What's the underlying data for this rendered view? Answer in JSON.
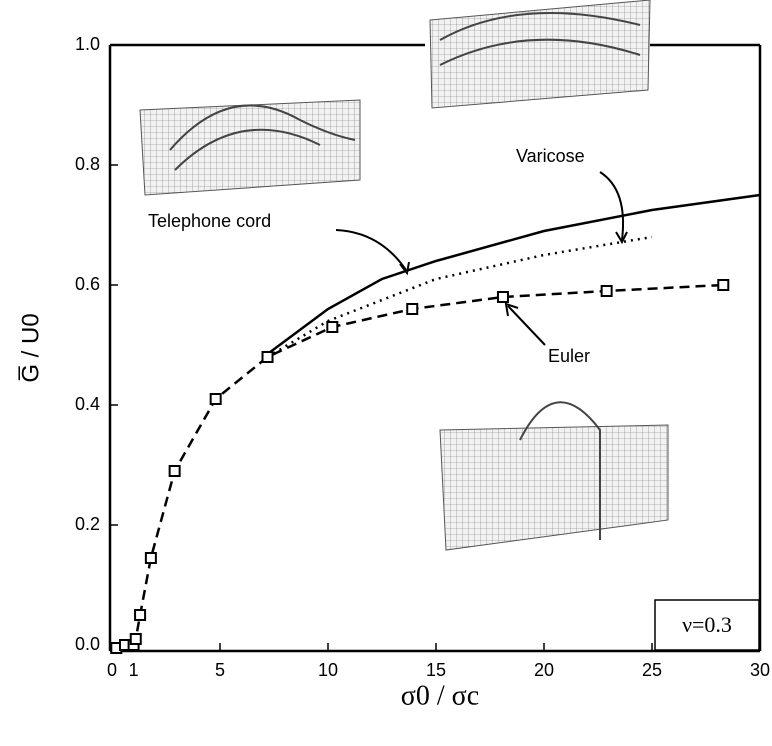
{
  "chart_data": {
    "type": "line",
    "xlabel": "σ0 / σc",
    "ylabel": "G̅ / U0",
    "xlim": [
      0,
      30
    ],
    "ylim": [
      -0.01,
      1.0
    ],
    "xticks": [
      0,
      1,
      5,
      10,
      15,
      20,
      25,
      30
    ],
    "yticks": [
      {
        "value": 0,
        "label": "0.0"
      },
      0.2,
      0.4,
      0.6,
      0.8,
      {
        "value": 1,
        "label": "1.0"
      }
    ],
    "series": [
      {
        "name": "Telephone cord",
        "color": "#000000",
        "dash": "solid",
        "markers": false,
        "x": [
          7.2,
          10,
          12.5,
          15,
          20,
          25,
          30
        ],
        "values": [
          0.485,
          0.56,
          0.61,
          0.64,
          0.69,
          0.725,
          0.75
        ]
      },
      {
        "name": "Varicose",
        "color": "#000000",
        "dash": "dotted",
        "markers": false,
        "x": [
          7.2,
          10,
          15,
          20,
          25
        ],
        "values": [
          0.48,
          0.54,
          0.61,
          0.65,
          0.68
        ]
      },
      {
        "name": "Euler",
        "color": "#000000",
        "dash": "dashed",
        "markers": true,
        "x": [
          0.2,
          0.6,
          1,
          1.1,
          1.3,
          1.8,
          2.9,
          4.8,
          7.2,
          10.2,
          13.9,
          18.1,
          22.9,
          28.3
        ],
        "values": [
          -0.005,
          0,
          0,
          0.01,
          0.05,
          0.145,
          0.29,
          0.41,
          0.48,
          0.53,
          0.56,
          0.58,
          0.59,
          0.6
        ]
      }
    ],
    "note": "ν=0.3"
  }
}
